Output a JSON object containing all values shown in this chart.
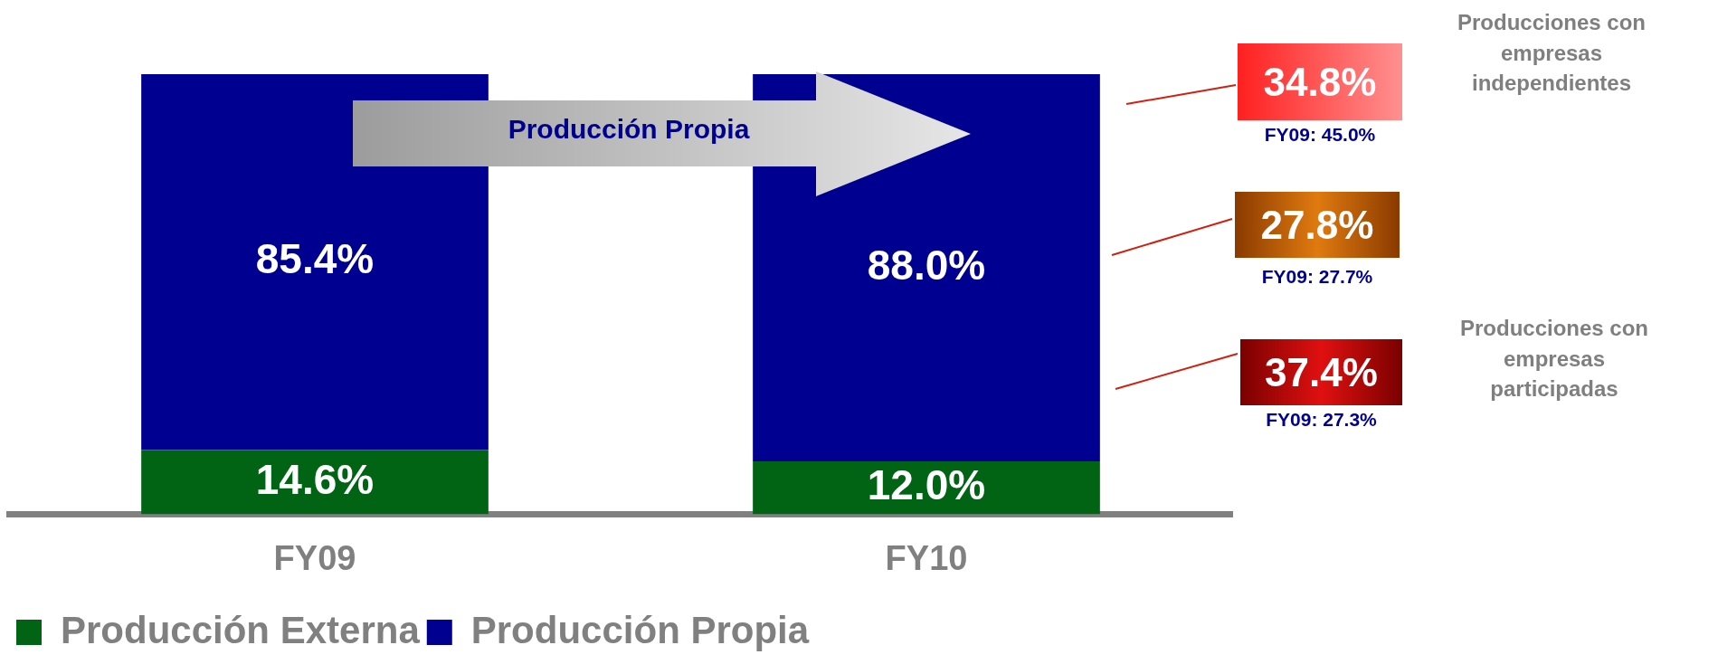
{
  "chart_data": {
    "type": "bar",
    "stacked": true,
    "categories": [
      "FY09",
      "FY10"
    ],
    "series": [
      {
        "name": "Producción Externa",
        "color": "#006414",
        "values": [
          14.6,
          12.0
        ],
        "value_labels": [
          "14.6%",
          "12.0%"
        ]
      },
      {
        "name": "Producción Propia",
        "color": "#000090",
        "values": [
          85.4,
          88.0
        ],
        "value_labels": [
          "85.4%",
          "88.0%"
        ]
      }
    ],
    "legend": "bottom",
    "grid": false,
    "annotations": [
      "Producción Propia",
      "Producciones con empresas independientes",
      "34.8%",
      "FY09: 45.0%",
      "27.8%",
      "FY09: 27.7%",
      "Producciones con empresas participadas",
      "37.4%",
      "FY09: 27.3%"
    ]
  }
}
